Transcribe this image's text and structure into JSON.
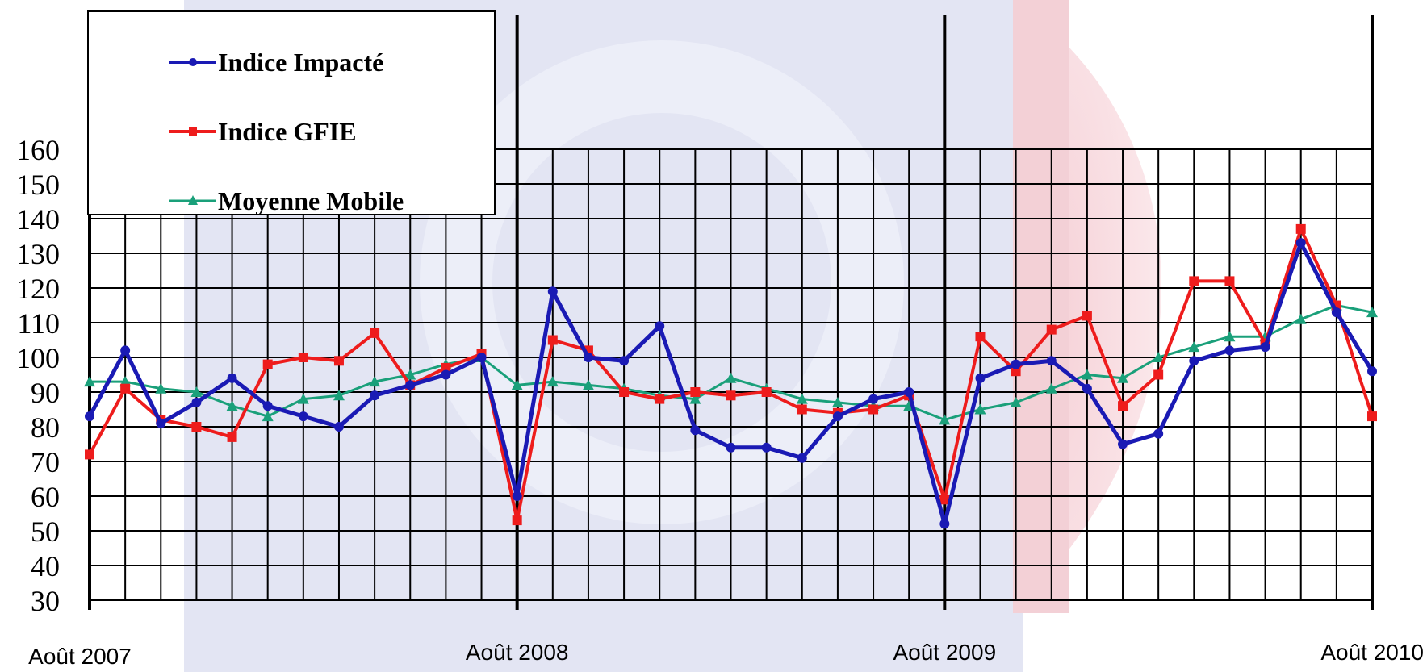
{
  "chart_data": {
    "type": "line",
    "title": "",
    "xlabel": "",
    "ylabel": "",
    "ylim": [
      30,
      160
    ],
    "y_ticks": [
      30,
      40,
      50,
      60,
      70,
      80,
      90,
      100,
      110,
      120,
      130,
      140,
      150,
      160
    ],
    "x_tick_labels": [
      "Août 2007",
      "Août 2008",
      "Août 2009",
      "Août 2010"
    ],
    "x_count": 37,
    "grid": true,
    "legend": "top-left",
    "series": [
      {
        "name": "Indice Impacté",
        "color": "#1a1ab4",
        "marker": "circle",
        "values": [
          83,
          102,
          81,
          87,
          94,
          86,
          83,
          80,
          89,
          92,
          95,
          100,
          60,
          119,
          100,
          99,
          109,
          79,
          74,
          74,
          71,
          83,
          88,
          90,
          52,
          94,
          98,
          99,
          91,
          75,
          78,
          99,
          102,
          103,
          133,
          113,
          96
        ]
      },
      {
        "name": "Indice GFIE",
        "color": "#ee1c1c",
        "marker": "square",
        "values": [
          72,
          91,
          82,
          80,
          77,
          98,
          100,
          99,
          107,
          92,
          97,
          101,
          53,
          105,
          102,
          90,
          88,
          90,
          89,
          90,
          85,
          84,
          85,
          89,
          59,
          106,
          96,
          108,
          112,
          86,
          95,
          122,
          122,
          104,
          137,
          115,
          83
        ]
      },
      {
        "name": "Moyenne Mobile",
        "color": "#1aa07a",
        "marker": "triangle",
        "values": [
          93,
          93,
          91,
          90,
          86,
          83,
          88,
          89,
          93,
          95,
          98,
          100,
          92,
          93,
          92,
          91,
          89,
          88,
          94,
          91,
          88,
          87,
          86,
          86,
          82,
          85,
          87,
          91,
          95,
          94,
          100,
          103,
          106,
          106,
          111,
          115,
          113
        ]
      }
    ]
  }
}
